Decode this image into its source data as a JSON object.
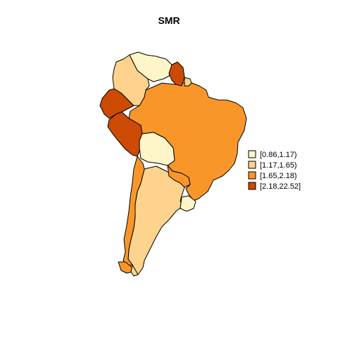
{
  "title": "SMR",
  "palette": [
    "#FEF5C8",
    "#FDD38D",
    "#F9962A",
    "#CC4A02"
  ],
  "legend": {
    "position": "right",
    "items": [
      {
        "label": "[0.86,1.17)",
        "color": "#FEF5C8"
      },
      {
        "label": "[1.17,1.65)",
        "color": "#FDD38D"
      },
      {
        "label": "[1.65,2.18)",
        "color": "#F9962A"
      },
      {
        "label": "[2.18,22.52]",
        "color": "#CC4A02"
      }
    ]
  },
  "regions": [
    {
      "name": "brazil",
      "class": 2
    },
    {
      "name": "argentina",
      "class": 1
    },
    {
      "name": "chile",
      "class": 2
    },
    {
      "name": "peru",
      "class": 3
    },
    {
      "name": "ecuador",
      "class": 3
    },
    {
      "name": "colombia",
      "class": 1
    },
    {
      "name": "venezuela",
      "class": 0
    },
    {
      "name": "guyana",
      "class": 3
    },
    {
      "name": "suriname",
      "class": 1
    },
    {
      "name": "bolivia",
      "class": 0
    },
    {
      "name": "paraguay",
      "class": 2
    },
    {
      "name": "uruguay",
      "class": 0
    },
    {
      "name": "tierra-del-fuego-argentina",
      "class": 1
    },
    {
      "name": "tierra-del-fuego-chile",
      "class": 2
    }
  ]
}
